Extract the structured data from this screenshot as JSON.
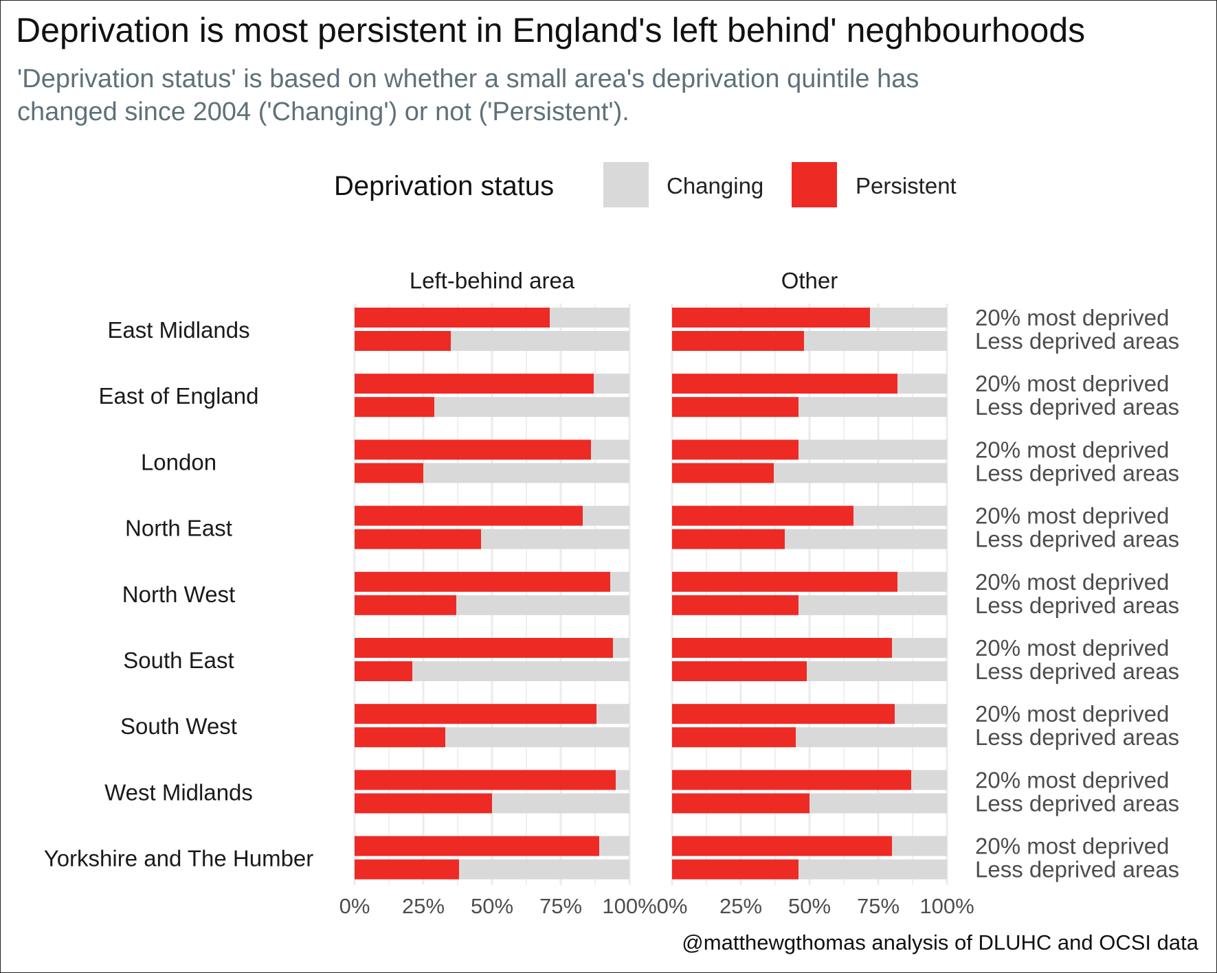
{
  "title": "Deprivation is most persistent in England's left behind' neghbourhoods",
  "subtitle_lines": [
    "'Deprivation status' is based on whether a small area's deprivation quintile has",
    "changed since 2004 ('Changing') or not ('Persistent')."
  ],
  "legend": {
    "title": "Deprivation status",
    "items": [
      {
        "label": "Changing",
        "color": "#d9d9d9"
      },
      {
        "label": "Persistent",
        "color": "#ee2a25"
      }
    ]
  },
  "caption": "@matthewgthomas analysis of DLUHC and OCSI data",
  "chart_data": {
    "type": "bar",
    "orientation": "horizontal",
    "stacked": "fill",
    "facets": [
      "Left-behind area",
      "Other"
    ],
    "regions": [
      "East Midlands",
      "East of England",
      "London",
      "North East",
      "North West",
      "South East",
      "South West",
      "West Midlands",
      "Yorkshire and The Humber"
    ],
    "area_types": [
      "20% most deprived",
      "Less deprived areas"
    ],
    "x_ticks": [
      "0%",
      "25%",
      "50%",
      "75%",
      "100%"
    ],
    "xlim": [
      0,
      100
    ],
    "series": [
      {
        "name": "Persistent",
        "color": "#ee2a25"
      },
      {
        "name": "Changing",
        "color": "#d9d9d9"
      }
    ],
    "persistent_pct": {
      "Left-behind area": [
        [
          71,
          35
        ],
        [
          87,
          29
        ],
        [
          86,
          25
        ],
        [
          83,
          46
        ],
        [
          93,
          37
        ],
        [
          94,
          21
        ],
        [
          88,
          33
        ],
        [
          95,
          50
        ],
        [
          89,
          38
        ]
      ],
      "Other": [
        [
          72,
          48
        ],
        [
          82,
          46
        ],
        [
          46,
          37
        ],
        [
          66,
          41
        ],
        [
          82,
          46
        ],
        [
          80,
          49
        ],
        [
          81,
          45
        ],
        [
          87,
          50
        ],
        [
          80,
          46
        ]
      ]
    }
  }
}
